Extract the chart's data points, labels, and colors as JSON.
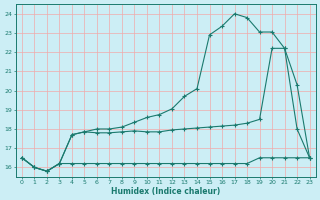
{
  "xlabel": "Humidex (Indice chaleur)",
  "bg_color": "#cceef5",
  "grid_color": "#f0aaaa",
  "line_color": "#1a7a6e",
  "xlim": [
    -0.5,
    23.5
  ],
  "ylim": [
    15.5,
    24.5
  ],
  "xticks": [
    0,
    1,
    2,
    3,
    4,
    5,
    6,
    7,
    8,
    9,
    10,
    11,
    12,
    13,
    14,
    15,
    16,
    17,
    18,
    19,
    20,
    21,
    22,
    23
  ],
  "yticks": [
    16,
    17,
    18,
    19,
    20,
    21,
    22,
    23,
    24
  ],
  "line1_x": [
    0,
    1,
    2,
    3,
    4,
    5,
    6,
    7,
    8,
    9,
    10,
    11,
    12,
    13,
    14,
    15,
    16,
    17,
    18,
    19,
    20,
    21,
    22,
    23
  ],
  "line1_y": [
    16.5,
    16.0,
    15.8,
    16.2,
    16.2,
    16.2,
    16.2,
    16.2,
    16.2,
    16.2,
    16.2,
    16.2,
    16.2,
    16.2,
    16.2,
    16.2,
    16.2,
    16.2,
    16.2,
    16.5,
    16.5,
    16.5,
    16.5,
    16.5
  ],
  "line2_x": [
    0,
    1,
    2,
    3,
    4,
    5,
    6,
    7,
    8,
    9,
    10,
    11,
    12,
    13,
    14,
    15,
    16,
    17,
    18,
    19,
    20,
    21,
    22,
    23
  ],
  "line2_y": [
    16.5,
    16.0,
    15.8,
    16.2,
    17.7,
    17.85,
    17.8,
    17.8,
    17.85,
    17.9,
    17.85,
    17.85,
    17.95,
    18.0,
    18.05,
    18.1,
    18.15,
    18.2,
    18.3,
    18.5,
    22.2,
    22.2,
    18.0,
    16.5
  ],
  "line3_x": [
    0,
    1,
    2,
    3,
    4,
    5,
    6,
    7,
    8,
    9,
    10,
    11,
    12,
    13,
    14,
    15,
    16,
    17,
    18,
    19,
    20,
    21,
    22,
    23
  ],
  "line3_y": [
    16.5,
    16.0,
    15.8,
    16.2,
    17.7,
    17.85,
    18.0,
    18.0,
    18.1,
    18.35,
    18.6,
    18.75,
    19.05,
    19.7,
    20.1,
    22.9,
    23.35,
    24.0,
    23.8,
    23.05,
    23.05,
    22.2,
    20.3,
    16.5
  ]
}
